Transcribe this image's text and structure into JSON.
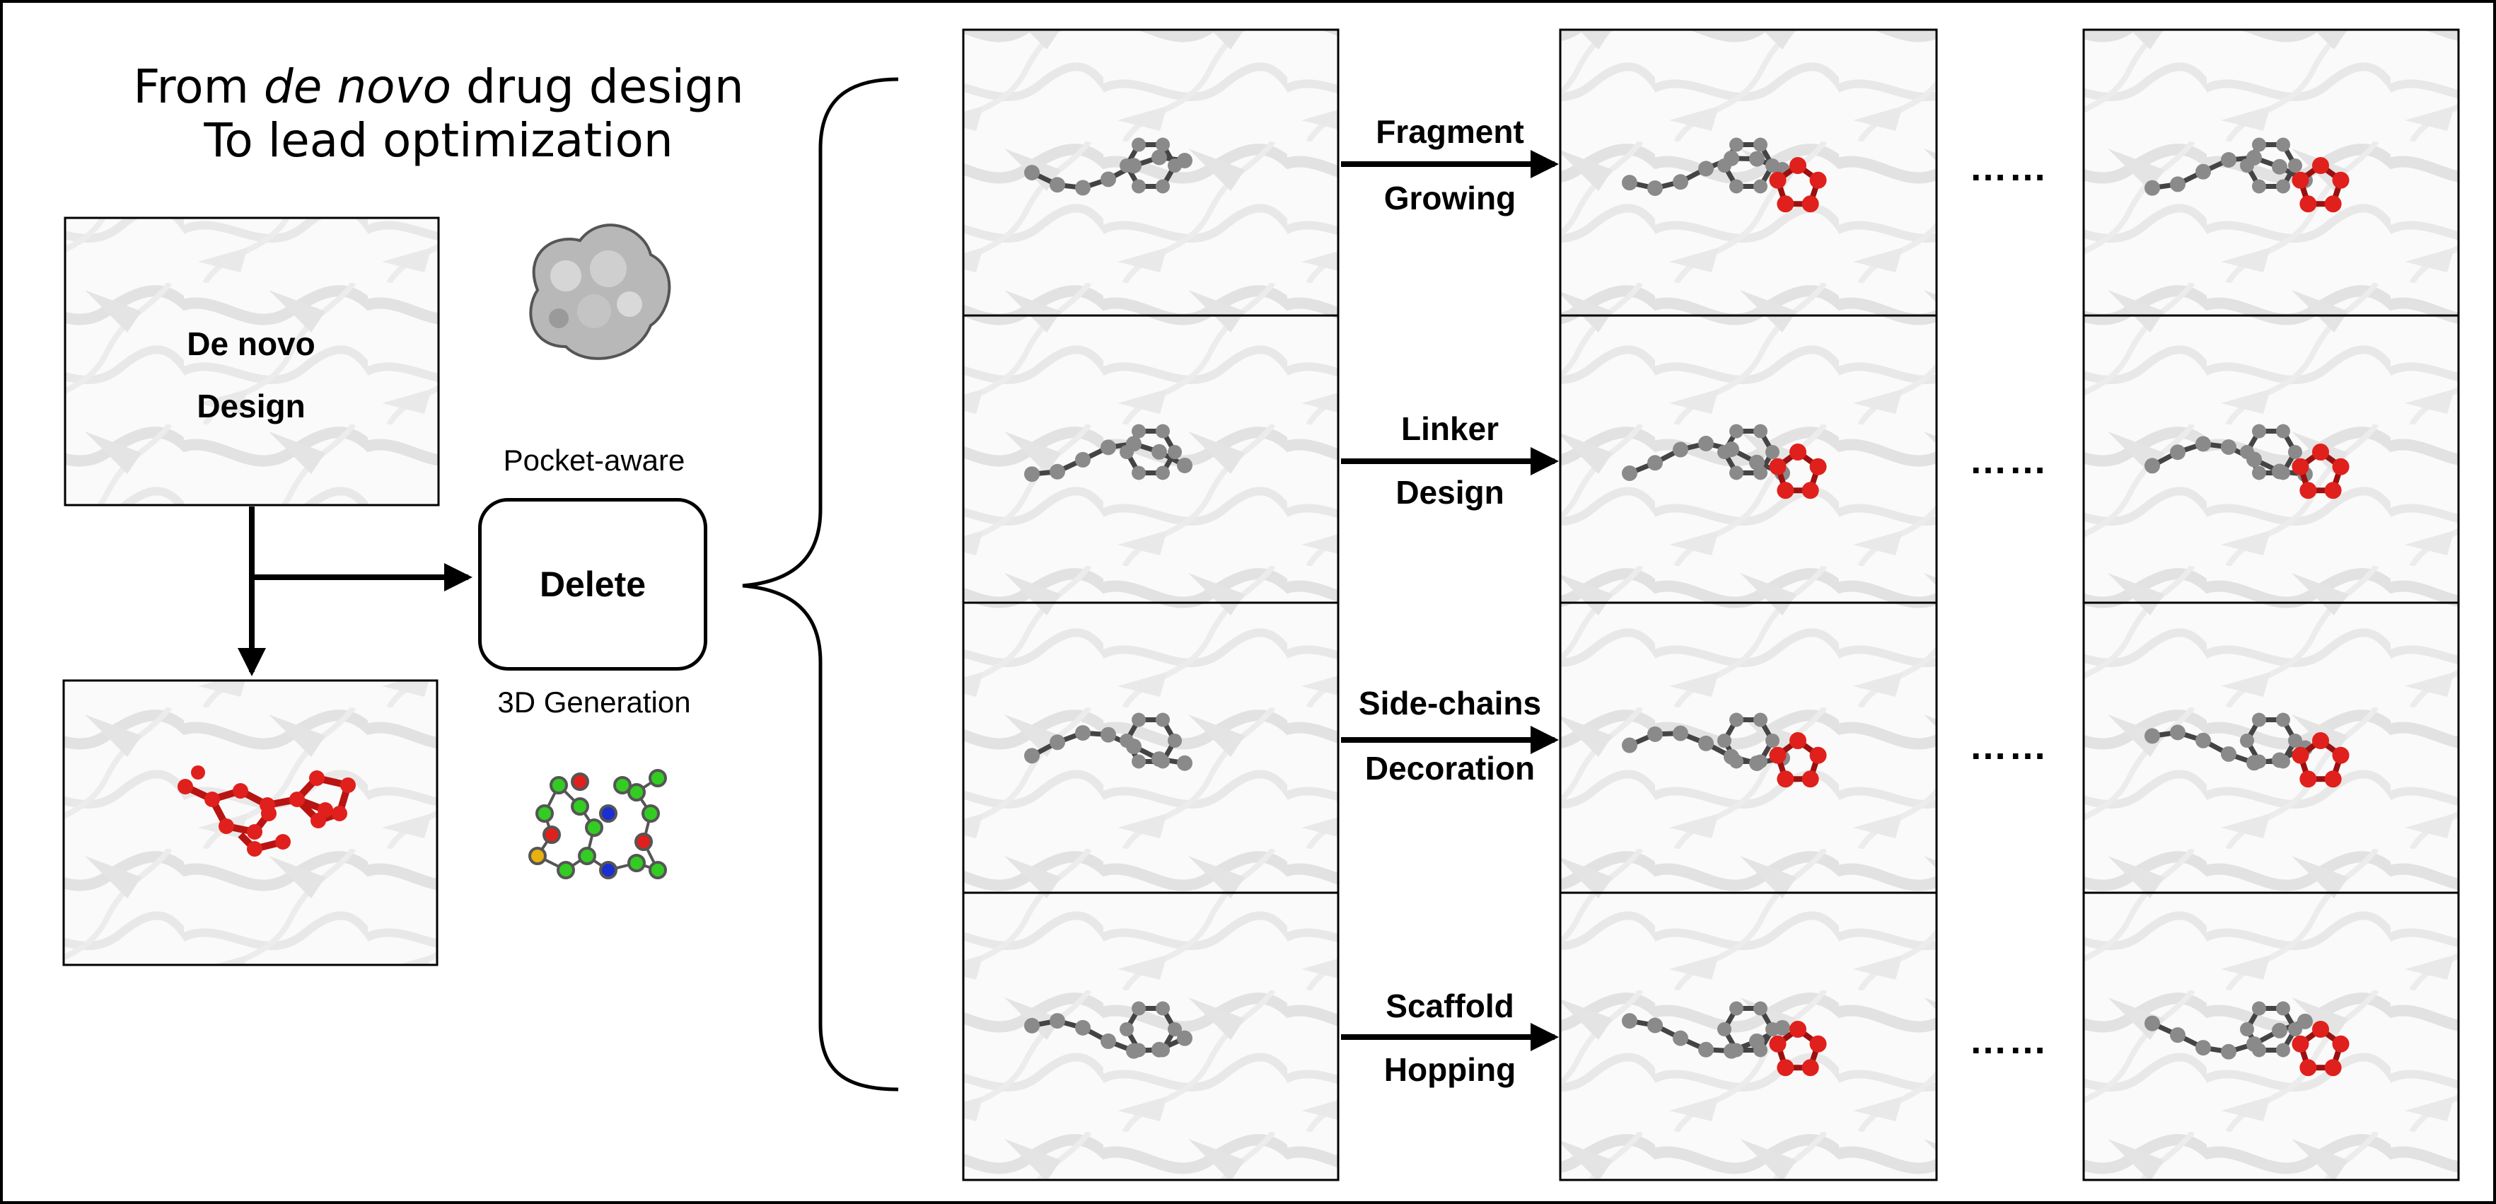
{
  "title": {
    "line1_prefix": "From ",
    "line1_italic": "de novo",
    "line1_suffix": " drug design",
    "line2": "To lead optimization"
  },
  "denovo_box": {
    "line1": "De novo",
    "line2": "Design"
  },
  "pocket_label": "Pocket-aware",
  "delete_label": "Delete",
  "generation_label": "3D Generation",
  "tasks": [
    {
      "line1": "Fragment",
      "line2": "Growing"
    },
    {
      "line1": "Linker",
      "line2": "Design"
    },
    {
      "line1": "Side-chains",
      "line2": "Decoration"
    },
    {
      "line1": "Scaffold",
      "line2": "Hopping"
    }
  ],
  "ellipsis": "……",
  "colors": {
    "ligand_red": "#e0201c",
    "ligand_gray": "#8a8a8a",
    "protein_gray": "#e6e6e6",
    "atom_green": "#33cc22",
    "atom_blue": "#1a2fd0",
    "atom_yellow": "#e8b010"
  }
}
